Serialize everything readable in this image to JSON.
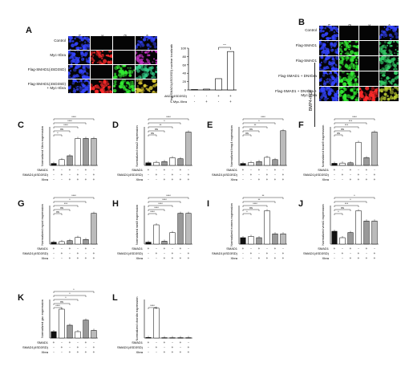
{
  "panels": {
    "A": {
      "letter": "A",
      "columns": [
        "DAPI",
        "Anti-Myc",
        "Anti-Flag",
        "Merge"
      ],
      "rows": [
        "Control",
        "Myc-Xbra",
        "Flag-SMAD1(4SD3SD)",
        "Flag-SMAD1(4SD3SD) + Myc-Xbra"
      ],
      "bar": {
        "ylabel": "Flag-SMAD1(4SD3SD) nuclear localization (%)",
        "yticks": [
          "0",
          "20",
          "40",
          "60",
          "80",
          "100"
        ],
        "row1_label": "Flag-SMAD1(4SD3SD)",
        "row2_label": "Myc-Xbra",
        "row1_signs": [
          "-",
          "-",
          "+",
          "+"
        ],
        "row2_signs": [
          "-",
          "+",
          "-",
          "+"
        ],
        "sig": "**"
      }
    },
    "B": {
      "letter": "B",
      "columns": [
        "DAPI",
        "Anti-Flag",
        "Anti-Myc",
        "Merge"
      ],
      "rows": [
        "Control",
        "Flag-SMAD1",
        "Flag-SMAD1",
        "Flag-SMAD1 + DNXbra",
        "Flag-SMAD1 + DNXbra + Myc-Xbra"
      ],
      "side_label": "BMP4+FGF"
    },
    "bars": [
      {
        "letter": "C",
        "ylabel": "Normalized Xbra expression",
        "sig": [
          "****",
          "****",
          "****",
          "ns",
          "*"
        ]
      },
      {
        "letter": "D",
        "ylabel": "Normalized msx2 expression",
        "sig": [
          "****",
          "*",
          "**",
          "ns",
          "ns"
        ]
      },
      {
        "letter": "E",
        "ylabel": "Normalized bmp4 expression",
        "sig": [
          "****",
          "*",
          "**",
          "ns",
          "ns"
        ]
      },
      {
        "letter": "F",
        "ylabel": "Normalized hoxb9 expression",
        "sig": [
          "****",
          "***",
          "***",
          "ns",
          "ns"
        ]
      },
      {
        "letter": "G",
        "ylabel": "Normalized myod expression",
        "sig": [
          "****",
          "*",
          "***",
          "ns",
          "ns"
        ]
      },
      {
        "letter": "H",
        "ylabel": "Normalized wnt8 expression",
        "sig": [
          "****",
          "****",
          "****",
          "****",
          "****"
        ]
      },
      {
        "letter": "I",
        "ylabel": "Normalized eomes expression",
        "sig": [
          "**",
          "**",
          "****",
          "ns",
          "*"
        ]
      },
      {
        "letter": "J",
        "ylabel": "Normalized vent1 expression",
        "sig": [
          "*",
          "*",
          "***",
          "ns",
          "*"
        ]
      },
      {
        "letter": "K",
        "ylabel": "Normalized gsc expression",
        "sig": [
          "*",
          "*",
          "*",
          "ns",
          "****"
        ]
      },
      {
        "letter": "L",
        "ylabel": "Normalized chordin expression",
        "sig": [
          "****"
        ]
      }
    ],
    "treat_labels": [
      "SMAD1",
      "SMAD1(4SD3SD)",
      "Xbra"
    ],
    "treat_signs": [
      [
        "+",
        "-",
        "+",
        "-",
        "+",
        "-"
      ],
      [
        "-",
        "+",
        "-",
        "+",
        "-",
        "+"
      ],
      [
        "-",
        "-",
        "+",
        "+",
        "+",
        "+"
      ]
    ]
  },
  "chart_data": [
    {
      "type": "bar",
      "panel": "A",
      "categories": [
        "1",
        "2",
        "3",
        "4"
      ],
      "values": [
        1,
        2,
        27,
        92
      ],
      "ylim": [
        0,
        100
      ]
    },
    {
      "type": "bar",
      "panel": "C",
      "categories": [
        "1",
        "2",
        "3",
        "4",
        "5",
        "6"
      ],
      "values": [
        1,
        3,
        5,
        14,
        14,
        14
      ],
      "ylim": [
        0,
        20
      ]
    },
    {
      "type": "bar",
      "panel": "D",
      "categories": [
        "1",
        "2",
        "3",
        "4",
        "5",
        "6"
      ],
      "values": [
        1,
        1.2,
        1.5,
        3,
        2.6,
        13
      ],
      "ylim": [
        0,
        15
      ]
    },
    {
      "type": "bar",
      "panel": "E",
      "categories": [
        "1",
        "2",
        "3",
        "4",
        "5",
        "6"
      ],
      "values": [
        1,
        1.5,
        2,
        4.2,
        3,
        18
      ],
      "ylim": [
        0,
        20
      ]
    },
    {
      "type": "bar",
      "panel": "F",
      "categories": [
        "1",
        "2",
        "3",
        "4",
        "5",
        "6"
      ],
      "values": [
        0.8,
        0.9,
        1,
        9,
        3,
        13
      ],
      "ylim": [
        0,
        15
      ]
    },
    {
      "type": "bar",
      "panel": "G",
      "categories": [
        "1",
        "2",
        "3",
        "4",
        "5",
        "6"
      ],
      "values": [
        1,
        1.3,
        1.8,
        3.5,
        2.4,
        16
      ],
      "ylim": [
        0,
        20
      ]
    },
    {
      "type": "bar",
      "panel": "H",
      "categories": [
        "1",
        "2",
        "3",
        "4",
        "5",
        "6"
      ],
      "values": [
        1,
        10,
        1.5,
        6,
        16,
        16
      ],
      "ylim": [
        0,
        20
      ]
    },
    {
      "type": "bar",
      "panel": "I",
      "categories": [
        "1",
        "2",
        "3",
        "4",
        "5",
        "6"
      ],
      "values": [
        1,
        1.2,
        1,
        5.2,
        1.6,
        1.6
      ],
      "ylim": [
        0,
        6
      ]
    },
    {
      "type": "bar",
      "panel": "J",
      "categories": [
        "1",
        "2",
        "3",
        "4",
        "5",
        "6"
      ],
      "values": [
        1,
        0.5,
        0.9,
        2.6,
        1.8,
        1.8
      ],
      "ylim": [
        0,
        3
      ]
    },
    {
      "type": "bar",
      "panel": "K",
      "categories": [
        "1",
        "2",
        "3",
        "4",
        "5",
        "6"
      ],
      "values": [
        1,
        4.5,
        2,
        1,
        2.8,
        1.2
      ],
      "ylim": [
        0,
        6
      ]
    },
    {
      "type": "bar",
      "panel": "L",
      "categories": [
        "1",
        "2",
        "3",
        "4",
        "5",
        "6"
      ],
      "values": [
        0.3,
        15.5,
        0.2,
        0.2,
        0.2,
        0.2
      ],
      "ylim": [
        0,
        20
      ]
    }
  ]
}
